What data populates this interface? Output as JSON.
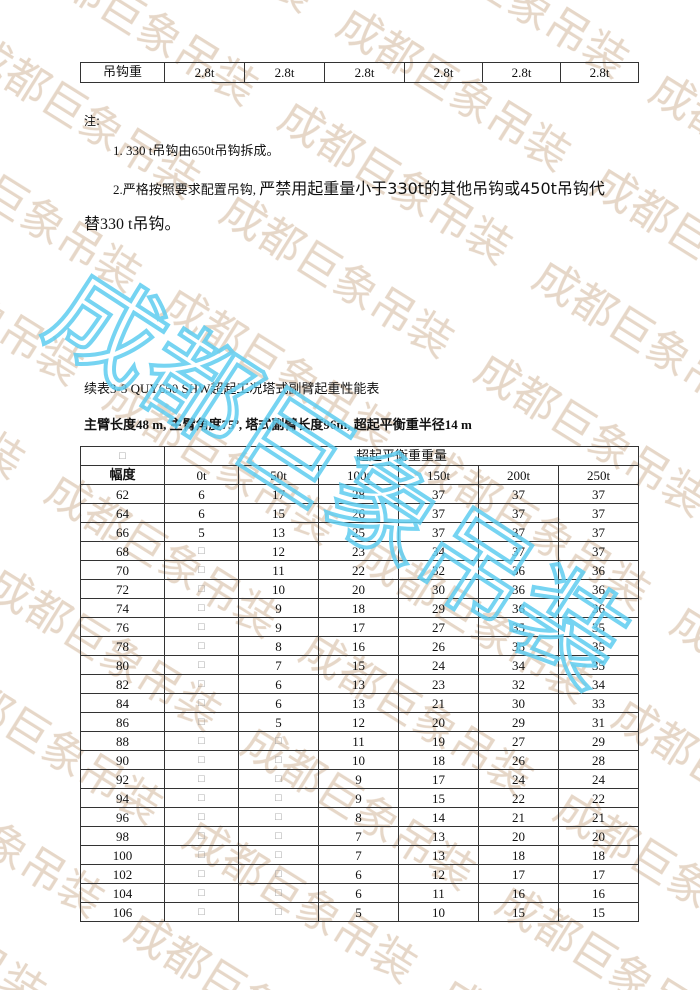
{
  "watermark": {
    "text": "成都巨象吊装",
    "light_color": "#e6d7c8",
    "blue_color": "#5fcdf0"
  },
  "hook_row": {
    "label": "吊钩重",
    "values": [
      "2.8t",
      "2.8t",
      "2.8t",
      "2.8t",
      "2.8t",
      "2.8t"
    ]
  },
  "notes": {
    "title": "注:",
    "item1": "1. 330 t吊钩由650t吊钩拆成。",
    "item2_prefix": "2.严格按照要求配置吊钩,",
    "item2_main": "严禁用起重量小于330t的其他吊钩或450t吊钩代",
    "item2_cont": "替330 t吊钩。"
  },
  "table_title": "续表3-3 QUY650 SHW超起工况塔式副臂起重性能表",
  "table_subtitle": "主臂长度48 m, 主臂角度75º, 塔式副臂长度96m, 超起平衡重半径14 m",
  "load_table": {
    "corner": "□",
    "group_header": "超起平衡重重量",
    "row_header": "幅度",
    "columns": [
      "0t",
      "50t",
      "100t",
      "150t",
      "200t",
      "250t"
    ],
    "rows": [
      [
        "62",
        "6",
        "17",
        "28",
        "37",
        "37",
        "37"
      ],
      [
        "64",
        "6",
        "15",
        "26",
        "37",
        "37",
        "37"
      ],
      [
        "66",
        "5",
        "13",
        "25",
        "37",
        "37",
        "37"
      ],
      [
        "68",
        "□",
        "12",
        "23",
        "34",
        "37",
        "37"
      ],
      [
        "70",
        "□",
        "11",
        "22",
        "32",
        "36",
        "36"
      ],
      [
        "72",
        "□",
        "10",
        "20",
        "30",
        "36",
        "36"
      ],
      [
        "74",
        "□",
        "9",
        "18",
        "29",
        "36",
        "36"
      ],
      [
        "76",
        "□",
        "9",
        "17",
        "27",
        "35",
        "35"
      ],
      [
        "78",
        "□",
        "8",
        "16",
        "26",
        "35",
        "35"
      ],
      [
        "80",
        "□",
        "7",
        "15",
        "24",
        "34",
        "35"
      ],
      [
        "82",
        "□",
        "6",
        "13",
        "23",
        "32",
        "34"
      ],
      [
        "84",
        "□",
        "6",
        "13",
        "21",
        "30",
        "33"
      ],
      [
        "86",
        "□",
        "5",
        "12",
        "20",
        "29",
        "31"
      ],
      [
        "88",
        "□",
        "□",
        "11",
        "19",
        "27",
        "29"
      ],
      [
        "90",
        "□",
        "□",
        "10",
        "18",
        "26",
        "28"
      ],
      [
        "92",
        "□",
        "□",
        "9",
        "17",
        "24",
        "24"
      ],
      [
        "94",
        "□",
        "□",
        "9",
        "15",
        "22",
        "22"
      ],
      [
        "96",
        "□",
        "□",
        "8",
        "14",
        "21",
        "21"
      ],
      [
        "98",
        "□",
        "□",
        "7",
        "13",
        "20",
        "20"
      ],
      [
        "100",
        "□",
        "□",
        "7",
        "13",
        "18",
        "18"
      ],
      [
        "102",
        "□",
        "□",
        "6",
        "12",
        "17",
        "17"
      ],
      [
        "104",
        "□",
        "□",
        "6",
        "11",
        "16",
        "16"
      ],
      [
        "106",
        "□",
        "□",
        "5",
        "10",
        "15",
        "15"
      ]
    ]
  }
}
